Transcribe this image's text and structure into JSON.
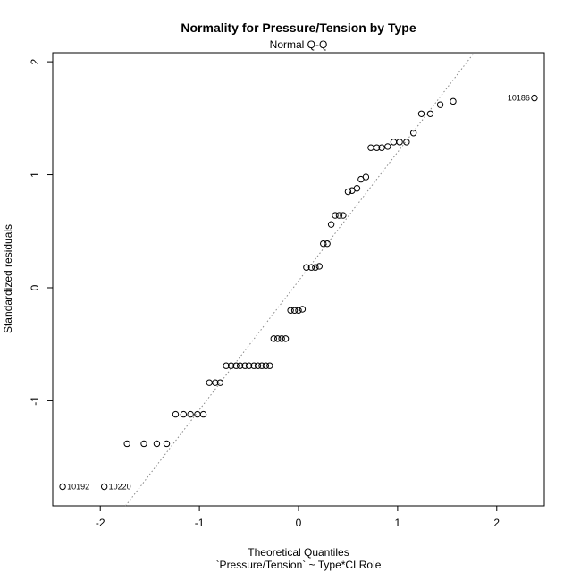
{
  "chart_data": {
    "type": "scatter",
    "title": "Normality for Pressure/Tension by Type",
    "subtitle": "Normal Q-Q",
    "xlabel": "Theoretical Quantiles",
    "xlabel2": "`Pressure/Tension` ~ Type*CLRole",
    "ylabel": "Standardized residuals",
    "xlim": [
      -2.48,
      2.48
    ],
    "ylim": [
      -1.93,
      2.08
    ],
    "x_ticks": [
      -2,
      -1,
      0,
      1,
      2
    ],
    "x_tick_labels": [
      "-2",
      "-1",
      "0",
      "1",
      "2"
    ],
    "y_ticks": [
      -1,
      0,
      1,
      2
    ],
    "y_tick_labels": [
      "-1",
      "0",
      "1",
      "2"
    ],
    "reference_line": {
      "slope": 1.14,
      "intercept": 0.06
    },
    "points": [
      [
        -2.38,
        -1.76
      ],
      [
        -1.96,
        -1.76
      ],
      [
        -1.73,
        -1.38
      ],
      [
        -1.56,
        -1.38
      ],
      [
        -1.43,
        -1.38
      ],
      [
        -1.33,
        -1.38
      ],
      [
        -1.24,
        -1.12
      ],
      [
        -1.16,
        -1.12
      ],
      [
        -1.09,
        -1.12
      ],
      [
        -1.02,
        -1.12
      ],
      [
        -0.96,
        -1.12
      ],
      [
        -0.9,
        -0.84
      ],
      [
        -0.84,
        -0.84
      ],
      [
        -0.79,
        -0.84
      ],
      [
        -0.73,
        -0.69
      ],
      [
        -0.68,
        -0.69
      ],
      [
        -0.63,
        -0.69
      ],
      [
        -0.59,
        -0.69
      ],
      [
        -0.54,
        -0.69
      ],
      [
        -0.5,
        -0.69
      ],
      [
        -0.45,
        -0.69
      ],
      [
        -0.41,
        -0.69
      ],
      [
        -0.37,
        -0.69
      ],
      [
        -0.33,
        -0.69
      ],
      [
        -0.29,
        -0.69
      ],
      [
        -0.25,
        -0.45
      ],
      [
        -0.21,
        -0.45
      ],
      [
        -0.17,
        -0.45
      ],
      [
        -0.13,
        -0.45
      ],
      [
        -0.08,
        -0.2
      ],
      [
        -0.04,
        -0.2
      ],
      [
        0.0,
        -0.2
      ],
      [
        0.04,
        -0.19
      ],
      [
        0.08,
        0.18
      ],
      [
        0.13,
        0.18
      ],
      [
        0.17,
        0.18
      ],
      [
        0.21,
        0.19
      ],
      [
        0.25,
        0.39
      ],
      [
        0.29,
        0.39
      ],
      [
        0.33,
        0.56
      ],
      [
        0.37,
        0.64
      ],
      [
        0.41,
        0.64
      ],
      [
        0.45,
        0.64
      ],
      [
        0.5,
        0.85
      ],
      [
        0.54,
        0.86
      ],
      [
        0.59,
        0.88
      ],
      [
        0.63,
        0.96
      ],
      [
        0.68,
        0.98
      ],
      [
        0.73,
        1.24
      ],
      [
        0.79,
        1.24
      ],
      [
        0.84,
        1.24
      ],
      [
        0.9,
        1.25
      ],
      [
        0.96,
        1.29
      ],
      [
        1.02,
        1.29
      ],
      [
        1.09,
        1.29
      ],
      [
        1.16,
        1.37
      ],
      [
        1.24,
        1.54
      ],
      [
        1.33,
        1.54
      ],
      [
        1.43,
        1.62
      ],
      [
        1.56,
        1.65
      ],
      [
        2.38,
        1.68
      ]
    ],
    "labeled_points": [
      {
        "label": "10192",
        "x": -2.38,
        "y": -1.76,
        "side": "right"
      },
      {
        "label": "10220",
        "x": -1.96,
        "y": -1.76,
        "side": "right"
      },
      {
        "label": "10186",
        "x": 2.38,
        "y": 1.68,
        "side": "left"
      }
    ]
  }
}
